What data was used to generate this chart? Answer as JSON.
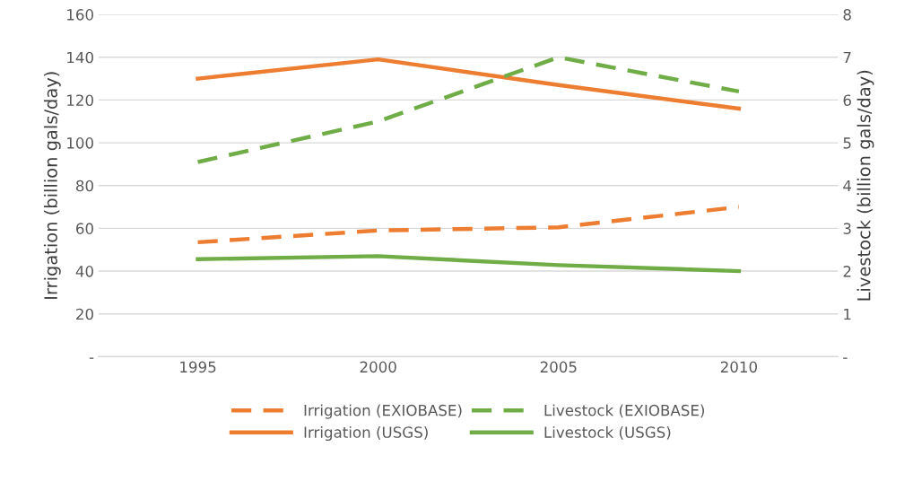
{
  "chart_data": {
    "type": "line",
    "categories": [
      "1995",
      "2000",
      "2005",
      "2010"
    ],
    "ylabel": "Irrigation (billion gals/day)",
    "y2label": "Livestock (billion gals/day)",
    "series": [
      {
        "name": "Irrigation (EXIOBASE)",
        "color": "#ed7d31",
        "line_style": "dashed",
        "values": [
          53.5,
          59,
          60.5,
          70
        ]
      },
      {
        "name": "Irrigation (USGS)",
        "color": "#ed7d31",
        "line_style": "solid",
        "values": [
          130,
          139,
          127,
          116
        ]
      },
      {
        "name": "Livestock (EXIOBASE)",
        "color": "#70ad47",
        "line_style": "dashed",
        "axis": "y2",
        "values": [
          4.55,
          5.5,
          7.0,
          6.2
        ]
      },
      {
        "name": "Livestock (USGS)",
        "color": "#70ad47",
        "line_style": "solid",
        "axis": "y2",
        "values": [
          2.28,
          2.35,
          2.14,
          2.0
        ]
      }
    ],
    "ylim": [
      0,
      160
    ],
    "yticks": [
      {
        "value": 0,
        "label": "-"
      },
      20,
      40,
      60,
      80,
      100,
      120,
      140,
      160
    ],
    "y2lim": [
      0,
      8
    ],
    "y2ticks": [
      {
        "value": 0,
        "label": "-"
      },
      1,
      2,
      3,
      4,
      5,
      6,
      7,
      8
    ],
    "grid": "y",
    "legend": "bottom",
    "marker": "none"
  }
}
